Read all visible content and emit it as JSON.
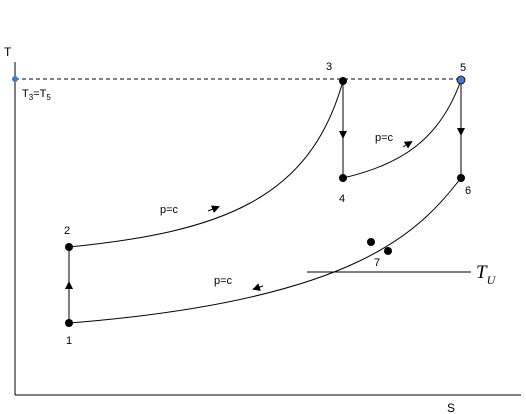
{
  "axes": {
    "y_label": "T",
    "x_label": "S"
  },
  "reference_line": {
    "label_main": "T",
    "label_sub1": "3",
    "label_eq": "=T",
    "label_sub2": "5"
  },
  "points": {
    "p1": "1",
    "p2": "2",
    "p3": "3",
    "p4": "4",
    "p5": "5",
    "p6": "6",
    "p7": "7"
  },
  "processes": {
    "heating_1": "p=c",
    "heating_2": "p=c",
    "cooling": "p=c"
  },
  "ambient": {
    "label_main": "T",
    "label_sub": "U"
  },
  "colors": {
    "line": "#000000",
    "highlight_point": "#4a78c8"
  }
}
